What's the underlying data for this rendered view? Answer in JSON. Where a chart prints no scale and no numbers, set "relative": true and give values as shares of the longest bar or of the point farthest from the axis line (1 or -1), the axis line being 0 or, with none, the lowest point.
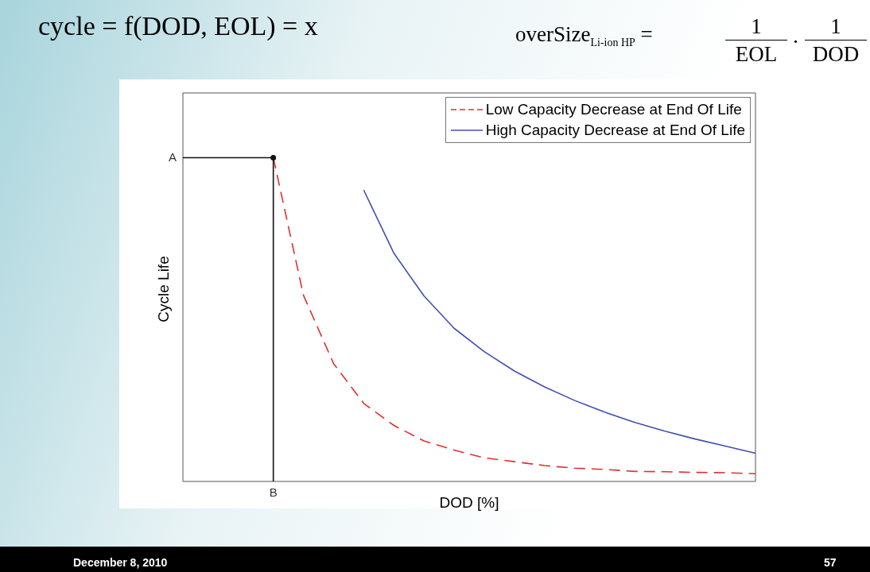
{
  "chart_data": {
    "type": "line",
    "title": "cycle = f(DOD, EOL) = x",
    "xlabel": "DOD [%]",
    "ylabel": "Cycle Life",
    "relative": true,
    "legend": "top right",
    "grid": false,
    "categories": [
      null,
      null,
      null,
      null,
      null,
      null,
      null,
      null,
      null,
      null,
      null,
      null,
      null,
      null,
      null,
      null,
      null,
      null,
      null,
      null
    ],
    "series": [
      {
        "name": "Low Capacity Decrease at End Of Life",
        "color": "#e03030",
        "line_style": "dashed",
        "values": [
          null,
          null,
          null,
          1.0,
          0.575,
          0.364,
          0.241,
          0.173,
          0.125,
          0.097,
          0.073,
          0.061,
          0.049,
          0.041,
          0.037,
          0.031,
          0.03,
          0.028,
          0.027,
          0.024
        ]
      },
      {
        "name": "High Capacity Decrease at End Of Life",
        "color": "#4050b0",
        "line_style": "solid",
        "values": [
          null,
          null,
          null,
          null,
          null,
          null,
          0.9,
          0.705,
          0.573,
          0.473,
          0.401,
          0.341,
          0.292,
          0.25,
          0.214,
          0.182,
          0.155,
          0.131,
          0.109,
          0.087
        ]
      }
    ],
    "ref_lines": [
      {
        "axis": "y",
        "value": 1.0,
        "label": "A",
        "color": "#111111"
      },
      {
        "axis": "x",
        "label": "B",
        "color": "#111111"
      }
    ],
    "annotations": [
      "overSize$_{Li-ion HP}$ =",
      "1",
      "EOL",
      "·",
      "1",
      "DOD",
      "December 8, 2010",
      "57"
    ]
  }
}
